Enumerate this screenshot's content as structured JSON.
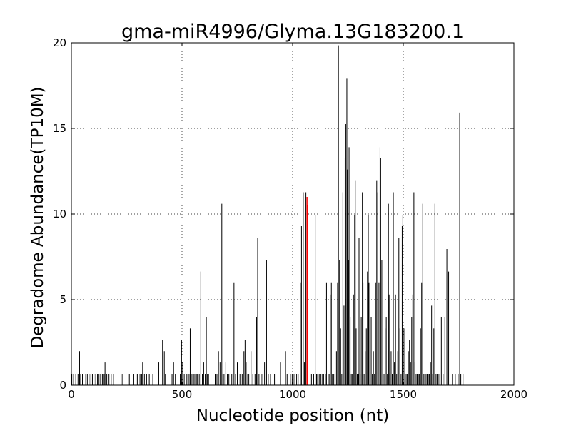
{
  "chart_data": {
    "type": "bar",
    "title": "gma-miR4996/Glyma.13G183200.1",
    "xlabel": "Nucleotide position (nt)",
    "ylabel": "Degradome Abundance(TP10M)",
    "xlim": [
      0,
      2000
    ],
    "ylim": [
      0,
      20
    ],
    "xticks": [
      0,
      500,
      1000,
      1500,
      2000
    ],
    "yticks": [
      0,
      5,
      10,
      15,
      20
    ],
    "grid": true,
    "colors": {
      "bars": "#000000",
      "highlight": "#ff0000"
    },
    "series": [
      {
        "values": [
          [
            2,
            0.66
          ],
          [
            10,
            0.66
          ],
          [
            20,
            0.66
          ],
          [
            30,
            0.66
          ],
          [
            37,
            1.99
          ],
          [
            42,
            0.66
          ],
          [
            50,
            0.66
          ],
          [
            65,
            0.66
          ],
          [
            72,
            0.66
          ],
          [
            80,
            0.66
          ],
          [
            88,
            0.66
          ],
          [
            95,
            0.66
          ],
          [
            102,
            0.66
          ],
          [
            110,
            0.66
          ],
          [
            118,
            0.66
          ],
          [
            125,
            0.66
          ],
          [
            132,
            0.66
          ],
          [
            140,
            0.66
          ],
          [
            148,
            0.66
          ],
          [
            152,
            1.33
          ],
          [
            160,
            0.66
          ],
          [
            170,
            0.66
          ],
          [
            180,
            0.66
          ],
          [
            190,
            0.66
          ],
          [
            225,
            0.66
          ],
          [
            232,
            0.66
          ],
          [
            262,
            0.66
          ],
          [
            282,
            0.66
          ],
          [
            298,
            0.66
          ],
          [
            310,
            0.66
          ],
          [
            318,
            0.66
          ],
          [
            322,
            1.33
          ],
          [
            330,
            0.66
          ],
          [
            340,
            0.66
          ],
          [
            352,
            0.66
          ],
          [
            368,
            0.66
          ],
          [
            395,
            1.33
          ],
          [
            412,
            2.66
          ],
          [
            420,
            1.99
          ],
          [
            425,
            0.66
          ],
          [
            455,
            0.66
          ],
          [
            462,
            1.33
          ],
          [
            470,
            0.66
          ],
          [
            492,
            0.66
          ],
          [
            498,
            2.66
          ],
          [
            503,
            1.33
          ],
          [
            510,
            0.66
          ],
          [
            522,
            0.66
          ],
          [
            532,
            0.66
          ],
          [
            537,
            3.32
          ],
          [
            545,
            0.66
          ],
          [
            552,
            0.66
          ],
          [
            558,
            0.66
          ],
          [
            565,
            0.66
          ],
          [
            570,
            0.66
          ],
          [
            578,
            0.66
          ],
          [
            585,
            6.64
          ],
          [
            592,
            0.66
          ],
          [
            598,
            1.33
          ],
          [
            605,
            0.66
          ],
          [
            610,
            3.98
          ],
          [
            615,
            0.66
          ],
          [
            620,
            0.66
          ],
          [
            650,
            0.66
          ],
          [
            658,
            0.66
          ],
          [
            665,
            1.99
          ],
          [
            672,
            1.33
          ],
          [
            680,
            10.6
          ],
          [
            685,
            0.66
          ],
          [
            690,
            0.66
          ],
          [
            698,
            1.33
          ],
          [
            705,
            0.66
          ],
          [
            712,
            0.66
          ],
          [
            725,
            0.66
          ],
          [
            735,
            5.97
          ],
          [
            742,
            0.66
          ],
          [
            750,
            1.33
          ],
          [
            762,
            0.66
          ],
          [
            772,
            0.66
          ],
          [
            780,
            1.99
          ],
          [
            785,
            2.66
          ],
          [
            790,
            1.33
          ],
          [
            797,
            0.66
          ],
          [
            802,
            0.66
          ],
          [
            812,
            1.99
          ],
          [
            820,
            0.66
          ],
          [
            830,
            0.66
          ],
          [
            837,
            3.98
          ],
          [
            842,
            8.62
          ],
          [
            848,
            0.66
          ],
          [
            858,
            0.66
          ],
          [
            865,
            0.66
          ],
          [
            873,
            1.33
          ],
          [
            882,
            7.3
          ],
          [
            890,
            0.66
          ],
          [
            900,
            0.66
          ],
          [
            918,
            0.66
          ],
          [
            945,
            1.33
          ],
          [
            968,
            1.99
          ],
          [
            975,
            0.66
          ],
          [
            990,
            0.66
          ],
          [
            998,
            0.66
          ],
          [
            1003,
            0.66
          ],
          [
            1010,
            0.66
          ],
          [
            1018,
            0.66
          ],
          [
            1025,
            0.66
          ],
          [
            1035,
            5.97
          ],
          [
            1040,
            9.29
          ],
          [
            1048,
            11.27
          ],
          [
            1053,
            1.33
          ],
          [
            1060,
            11.27
          ],
          [
            1065,
            0.66
          ],
          [
            1085,
            0.66
          ],
          [
            1095,
            0.66
          ],
          [
            1102,
            9.95
          ],
          [
            1108,
            0.66
          ],
          [
            1113,
            0.66
          ],
          [
            1120,
            0.66
          ],
          [
            1128,
            0.66
          ],
          [
            1135,
            0.66
          ],
          [
            1140,
            0.66
          ],
          [
            1148,
            0.66
          ],
          [
            1153,
            5.97
          ],
          [
            1160,
            0.66
          ],
          [
            1165,
            0.66
          ],
          [
            1170,
            5.3
          ],
          [
            1175,
            5.97
          ],
          [
            1180,
            0.66
          ],
          [
            1186,
            0.66
          ],
          [
            1192,
            0.66
          ],
          [
            1198,
            1.99
          ],
          [
            1203,
            5.97
          ],
          [
            1207,
            19.85
          ],
          [
            1212,
            7.3
          ],
          [
            1217,
            3.32
          ],
          [
            1222,
            0.66
          ],
          [
            1227,
            11.27
          ],
          [
            1232,
            4.65
          ],
          [
            1237,
            13.26
          ],
          [
            1240,
            15.25
          ],
          [
            1245,
            17.9
          ],
          [
            1248,
            12.6
          ],
          [
            1252,
            7.3
          ],
          [
            1255,
            13.9
          ],
          [
            1260,
            3.98
          ],
          [
            1265,
            0.66
          ],
          [
            1270,
            0.66
          ],
          [
            1275,
            5.3
          ],
          [
            1280,
            9.95
          ],
          [
            1283,
            11.93
          ],
          [
            1287,
            3.32
          ],
          [
            1292,
            0.66
          ],
          [
            1297,
            0.66
          ],
          [
            1300,
            8.62
          ],
          [
            1305,
            0.66
          ],
          [
            1310,
            3.98
          ],
          [
            1315,
            11.27
          ],
          [
            1318,
            5.97
          ],
          [
            1323,
            0.66
          ],
          [
            1328,
            1.99
          ],
          [
            1333,
            3.32
          ],
          [
            1338,
            6.64
          ],
          [
            1342,
            9.95
          ],
          [
            1345,
            5.97
          ],
          [
            1350,
            7.3
          ],
          [
            1355,
            3.98
          ],
          [
            1360,
            0.66
          ],
          [
            1365,
            1.99
          ],
          [
            1370,
            0.66
          ],
          [
            1375,
            5.97
          ],
          [
            1380,
            11.93
          ],
          [
            1385,
            11.27
          ],
          [
            1390,
            5.97
          ],
          [
            1395,
            13.9
          ],
          [
            1398,
            13.26
          ],
          [
            1403,
            7.3
          ],
          [
            1408,
            0.66
          ],
          [
            1413,
            0.66
          ],
          [
            1418,
            3.32
          ],
          [
            1423,
            3.98
          ],
          [
            1428,
            0.66
          ],
          [
            1433,
            10.6
          ],
          [
            1436,
            5.3
          ],
          [
            1440,
            0.66
          ],
          [
            1445,
            1.99
          ],
          [
            1450,
            0.66
          ],
          [
            1455,
            11.27
          ],
          [
            1460,
            1.33
          ],
          [
            1465,
            5.3
          ],
          [
            1470,
            0.66
          ],
          [
            1475,
            1.99
          ],
          [
            1480,
            8.62
          ],
          [
            1485,
            3.32
          ],
          [
            1490,
            0.66
          ],
          [
            1495,
            9.29
          ],
          [
            1498,
            9.95
          ],
          [
            1503,
            3.32
          ],
          [
            1508,
            0.66
          ],
          [
            1513,
            0.66
          ],
          [
            1518,
            0.66
          ],
          [
            1523,
            1.99
          ],
          [
            1528,
            2.66
          ],
          [
            1533,
            1.33
          ],
          [
            1538,
            3.98
          ],
          [
            1543,
            5.3
          ],
          [
            1548,
            11.27
          ],
          [
            1553,
            1.33
          ],
          [
            1558,
            0.66
          ],
          [
            1563,
            0.66
          ],
          [
            1568,
            0.66
          ],
          [
            1573,
            0.66
          ],
          [
            1578,
            3.32
          ],
          [
            1583,
            5.97
          ],
          [
            1588,
            10.6
          ],
          [
            1593,
            0.66
          ],
          [
            1598,
            0.66
          ],
          [
            1603,
            0.66
          ],
          [
            1608,
            0.66
          ],
          [
            1613,
            0.66
          ],
          [
            1618,
            0.66
          ],
          [
            1623,
            1.33
          ],
          [
            1628,
            4.65
          ],
          [
            1633,
            0.66
          ],
          [
            1638,
            3.32
          ],
          [
            1643,
            10.6
          ],
          [
            1648,
            0.66
          ],
          [
            1653,
            0.66
          ],
          [
            1658,
            0.66
          ],
          [
            1665,
            0.66
          ],
          [
            1672,
            3.98
          ],
          [
            1680,
            0.66
          ],
          [
            1688,
            3.98
          ],
          [
            1697,
            7.96
          ],
          [
            1705,
            6.64
          ],
          [
            1722,
            0.66
          ],
          [
            1735,
            0.66
          ],
          [
            1748,
            0.66
          ],
          [
            1755,
            15.92
          ],
          [
            1760,
            0.66
          ],
          [
            1770,
            0.66
          ]
        ]
      },
      {
        "highlight": true,
        "values": [
          [
            1065,
            11.0
          ],
          [
            1068,
            10.5
          ]
        ]
      }
    ]
  }
}
